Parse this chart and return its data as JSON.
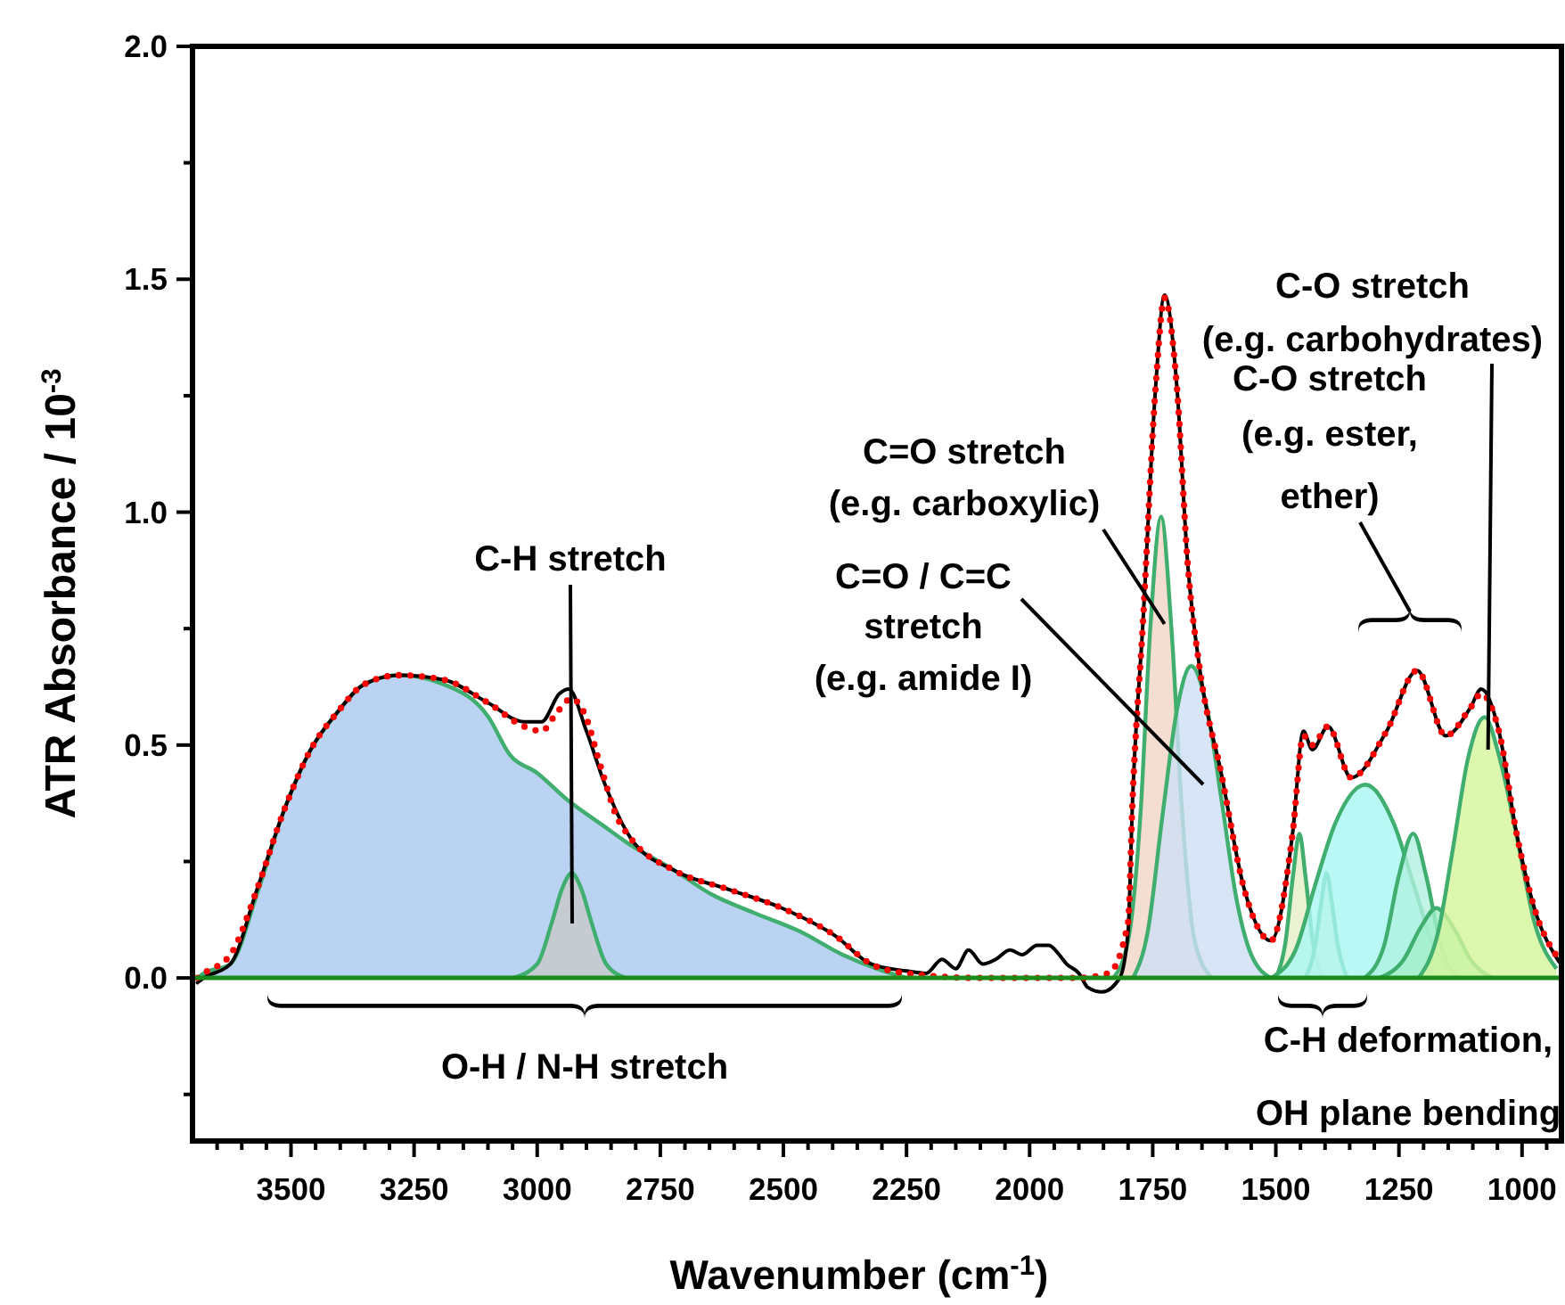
{
  "chart_data": {
    "type": "area",
    "xlabel": "Wavenumber (cm$^{-1}$)",
    "ylabel": "ATR Absorbance / 10$^{-3}$",
    "xlim": [
      3700,
      920
    ],
    "xticks": [
      3500,
      3250,
      3000,
      2750,
      2500,
      2250,
      2000,
      1750,
      1500,
      1250,
      1000,
      {
        "value": 3650,
        "label": null
      },
      {
        "value": 3600,
        "label": null
      },
      {
        "value": 3550,
        "label": null
      },
      {
        "value": 3450,
        "label": null
      },
      {
        "value": 3400,
        "label": null
      },
      {
        "value": 3350,
        "label": null
      },
      {
        "value": 3300,
        "label": null
      },
      {
        "value": 3200,
        "label": null
      },
      {
        "value": 3150,
        "label": null
      },
      {
        "value": 3100,
        "label": null
      },
      {
        "value": 3050,
        "label": null
      },
      {
        "value": 2950,
        "label": null
      },
      {
        "value": 2900,
        "label": null
      },
      {
        "value": 2850,
        "label": null
      },
      {
        "value": 2800,
        "label": null
      },
      {
        "value": 2700,
        "label": null
      },
      {
        "value": 2650,
        "label": null
      },
      {
        "value": 2600,
        "label": null
      },
      {
        "value": 2550,
        "label": null
      },
      {
        "value": 2450,
        "label": null
      },
      {
        "value": 2400,
        "label": null
      },
      {
        "value": 2350,
        "label": null
      },
      {
        "value": 2300,
        "label": null
      },
      {
        "value": 2200,
        "label": null
      },
      {
        "value": 2150,
        "label": null
      },
      {
        "value": 2100,
        "label": null
      },
      {
        "value": 2050,
        "label": null
      },
      {
        "value": 1950,
        "label": null
      },
      {
        "value": 1900,
        "label": null
      },
      {
        "value": 1850,
        "label": null
      },
      {
        "value": 1800,
        "label": null
      },
      {
        "value": 1700,
        "label": null
      },
      {
        "value": 1650,
        "label": null
      },
      {
        "value": 1600,
        "label": null
      },
      {
        "value": 1550,
        "label": null
      },
      {
        "value": 1450,
        "label": null
      },
      {
        "value": 1400,
        "label": null
      },
      {
        "value": 1350,
        "label": null
      },
      {
        "value": 1300,
        "label": null
      },
      {
        "value": 1200,
        "label": null
      },
      {
        "value": 1150,
        "label": null
      },
      {
        "value": 1100,
        "label": null
      },
      {
        "value": 1050,
        "label": null
      },
      {
        "value": 950,
        "label": null
      }
    ],
    "ylim": [
      -0.35,
      2.0
    ],
    "yticks": [
      {
        "value": 0,
        "label": "0.0"
      },
      0.5,
      {
        "value": 1,
        "label": "1.0"
      },
      1.5,
      {
        "value": 2,
        "label": "2.0"
      },
      {
        "value": -0.25,
        "label": null
      },
      {
        "value": 0.25,
        "label": null
      },
      {
        "value": 0.75,
        "label": null
      },
      {
        "value": 1.25,
        "label": null
      },
      {
        "value": 1.75,
        "label": null
      }
    ],
    "ref_lines": [
      {
        "axis": "y",
        "value": 0,
        "color": "#1a8a1a"
      }
    ],
    "series": [
      {
        "color": "#a9c8ef",
        "x": [
          3690,
          3677,
          3623,
          3569,
          3514,
          3460,
          3406,
          3352,
          3280,
          3189,
          3099,
          3056,
          3000,
          2936,
          2870,
          2817,
          2720,
          2647,
          2560,
          2467,
          2380,
          2311,
          2250
        ],
        "values": [
          0,
          0.01,
          0.03,
          0.18,
          0.36,
          0.49,
          0.57,
          0.63,
          0.65,
          0.63,
          0.56,
          0.48,
          0.44,
          0.38,
          0.33,
          0.29,
          0.23,
          0.18,
          0.14,
          0.1,
          0.05,
          0.02,
          0
        ]
      },
      {
        "color": "#c9c9c9",
        "x": [
          3050,
          3000,
          2970,
          2950,
          2930,
          2910,
          2890,
          2860,
          2820
        ],
        "values": [
          0,
          0.03,
          0.12,
          0.19,
          0.225,
          0.19,
          0.12,
          0.03,
          0
        ]
      },
      {
        "color": "#f1d6c6",
        "x": [
          1830,
          1800,
          1775,
          1755,
          1733,
          1712,
          1690,
          1665,
          1630
        ],
        "values": [
          0,
          0.08,
          0.35,
          0.75,
          0.99,
          0.75,
          0.35,
          0.08,
          0
        ]
      },
      {
        "color": "#cddff5",
        "x": [
          1790,
          1760,
          1730,
          1700,
          1672,
          1640,
          1610,
          1580,
          1550,
          1510
        ],
        "values": [
          0,
          0.1,
          0.35,
          0.58,
          0.67,
          0.58,
          0.38,
          0.17,
          0.05,
          0
        ]
      },
      {
        "color": "#e6efc6",
        "x": [
          1500,
          1480,
          1465,
          1452,
          1440,
          1425,
          1405
        ],
        "values": [
          0,
          0.08,
          0.22,
          0.31,
          0.22,
          0.08,
          0
        ]
      },
      {
        "color": "#efeac0",
        "x": [
          1440,
          1420,
          1408,
          1397,
          1386,
          1374,
          1355
        ],
        "values": [
          0,
          0.07,
          0.16,
          0.225,
          0.16,
          0.07,
          0
        ]
      },
      {
        "color": "#a9f6f4",
        "x": [
          1510,
          1460,
          1420,
          1380,
          1318,
          1260,
          1220,
          1180,
          1130
        ],
        "values": [
          0,
          0.06,
          0.2,
          0.33,
          0.415,
          0.33,
          0.2,
          0.07,
          0
        ]
      },
      {
        "color": "#b2f1e1",
        "x": [
          1320,
          1280,
          1250,
          1221,
          1195,
          1165,
          1130
        ],
        "values": [
          0,
          0.07,
          0.22,
          0.31,
          0.22,
          0.07,
          0
        ]
      },
      {
        "color": "#a3efca",
        "x": [
          1290,
          1240,
          1205,
          1174,
          1140,
          1105,
          1060
        ],
        "values": [
          0,
          0.04,
          0.11,
          0.15,
          0.11,
          0.04,
          0
        ]
      },
      {
        "color": "#d5f59b",
        "x": [
          1210,
          1170,
          1140,
          1110,
          1076,
          1045,
          1010,
          975,
          930
        ],
        "values": [
          0,
          0.1,
          0.28,
          0.47,
          0.56,
          0.47,
          0.3,
          0.12,
          0.02
        ]
      },
      {
        "type": "line",
        "color": "#000000",
        "x": [
          3690,
          3677,
          3623,
          3569,
          3514,
          3460,
          3406,
          3352,
          3280,
          3189,
          3099,
          3027,
          2991,
          2955,
          2936,
          2900,
          2864,
          2810,
          2720,
          2611,
          2503,
          2394,
          2322,
          2250,
          2210,
          2178,
          2150,
          2124,
          2095,
          2069,
          2040,
          2015,
          1985,
          1961,
          1940,
          1925,
          1900,
          1882,
          1853,
          1817,
          1800,
          1791,
          1770,
          1744,
          1726,
          1701,
          1679,
          1654,
          1611,
          1564,
          1510,
          1466,
          1444,
          1426,
          1394,
          1347,
          1275,
          1213,
          1155,
          1105,
          1083,
          1047,
          1011,
          975,
          925
        ],
        "values": [
          -0.01,
          0,
          0.03,
          0.19,
          0.36,
          0.49,
          0.57,
          0.63,
          0.65,
          0.64,
          0.59,
          0.55,
          0.55,
          0.61,
          0.62,
          0.53,
          0.42,
          0.3,
          0.23,
          0.19,
          0.15,
          0.09,
          0.03,
          0.015,
          0.01,
          0.04,
          0.02,
          0.06,
          0.03,
          0.04,
          0.06,
          0.05,
          0.07,
          0.07,
          0.05,
          0.03,
          0.01,
          -0.02,
          -0.03,
          0,
          0.1,
          0.38,
          0.76,
          1.27,
          1.466,
          1.27,
          0.89,
          0.66,
          0.44,
          0.19,
          0.08,
          0.31,
          0.53,
          0.49,
          0.54,
          0.43,
          0.53,
          0.66,
          0.52,
          0.58,
          0.62,
          0.53,
          0.31,
          0.15,
          0.035
        ]
      },
      {
        "type": "line",
        "color": "#ff0000",
        "line_style": "dotted",
        "x": [
          3690,
          3677,
          3623,
          3569,
          3514,
          3460,
          3406,
          3352,
          3280,
          3189,
          3099,
          3027,
          2991,
          2960,
          2930,
          2905,
          2870,
          2840,
          2810,
          2720,
          2611,
          2503,
          2394,
          2322,
          2250,
          2100,
          1900,
          1840,
          1800,
          1791,
          1770,
          1744,
          1726,
          1701,
          1679,
          1654,
          1611,
          1564,
          1510,
          1466,
          1444,
          1426,
          1394,
          1347,
          1275,
          1213,
          1155,
          1105,
          1083,
          1047,
          1011,
          975,
          925
        ],
        "values": [
          0,
          0.01,
          0.05,
          0.19,
          0.36,
          0.49,
          0.57,
          0.63,
          0.65,
          0.64,
          0.59,
          0.54,
          0.53,
          0.57,
          0.6,
          0.57,
          0.45,
          0.35,
          0.3,
          0.23,
          0.19,
          0.15,
          0.09,
          0.03,
          0.01,
          0,
          0,
          0.01,
          0.12,
          0.38,
          0.76,
          1.27,
          1.46,
          1.27,
          0.89,
          0.66,
          0.44,
          0.19,
          0.08,
          0.31,
          0.52,
          0.5,
          0.54,
          0.43,
          0.53,
          0.66,
          0.52,
          0.58,
          0.61,
          0.53,
          0.31,
          0.15,
          0.04
        ]
      }
    ],
    "annotations": [
      "C-H stretch",
      {
        "text": "C=O stretch\n(e.g. carboxylic)",
        "x": 1726,
        "y": 0.76
      },
      "C=O / C=C\nstretch\n(e.g. amide I)",
      {
        "text": "C-O stretch\n(e.g. carbohydrates)",
        "x": 1069,
        "y": 0.49
      },
      "C-O stretch\n(e.g. ester,\nether)",
      "C-H deformation,\nOH plane bending",
      "O-H / N-H stretch"
    ]
  }
}
